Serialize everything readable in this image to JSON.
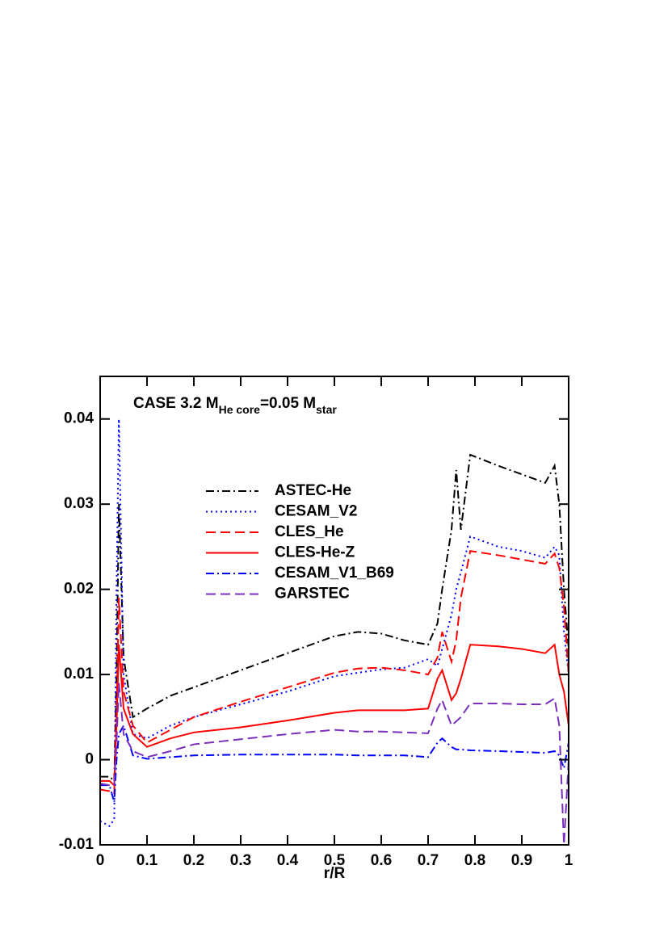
{
  "chart_data": {
    "type": "line",
    "title_parts": [
      {
        "text": "CASE 3.2 M"
      },
      {
        "text": "He core",
        "sub": true
      },
      {
        "text": "=0.05 M"
      },
      {
        "text": "star",
        "sub": true
      }
    ],
    "x_label": "r/R",
    "xlim": [
      0,
      1
    ],
    "ylim": [
      -0.01,
      0.045
    ],
    "xticks": [
      0,
      0.1,
      0.2,
      0.3,
      0.4,
      0.5,
      0.6,
      0.7,
      0.8,
      0.9,
      1
    ],
    "yticks": [
      -0.01,
      0,
      0.01,
      0.02,
      0.03,
      0.04
    ],
    "legend": "upper center",
    "x": [
      0,
      0.02,
      0.03,
      0.035,
      0.04,
      0.05,
      0.07,
      0.1,
      0.15,
      0.2,
      0.3,
      0.4,
      0.5,
      0.55,
      0.6,
      0.65,
      0.7,
      0.72,
      0.73,
      0.75,
      0.76,
      0.77,
      0.79,
      0.85,
      0.9,
      0.95,
      0.97,
      0.98,
      0.99,
      1.0
    ],
    "series": [
      {
        "name": "ASTEC-He",
        "color": "#000000",
        "dash": "dashdot",
        "values": [
          -0.002,
          -0.002,
          -0.0025,
          0.01,
          0.03,
          0.012,
          0.005,
          0.006,
          0.0075,
          0.0085,
          0.0105,
          0.0125,
          0.0145,
          0.015,
          0.0148,
          0.014,
          0.0135,
          0.016,
          0.02,
          0.027,
          0.034,
          0.027,
          0.0358,
          0.0345,
          0.0335,
          0.0325,
          0.0345,
          0.03,
          0.02,
          0.013
        ]
      },
      {
        "name": "CESAM_V2",
        "color": "#0000ff",
        "dash": "dotted",
        "values": [
          -0.0072,
          -0.0078,
          -0.007,
          0.02,
          0.04,
          0.01,
          0.003,
          0.0025,
          0.004,
          0.005,
          0.0065,
          0.008,
          0.0098,
          0.0102,
          0.0106,
          0.0108,
          0.0118,
          0.011,
          0.013,
          0.017,
          0.02,
          0.022,
          0.0262,
          0.025,
          0.0245,
          0.0237,
          0.025,
          0.024,
          0.015,
          0.01
        ]
      },
      {
        "name": "CLES_He",
        "color": "#ff0000",
        "dash": "dashed",
        "values": [
          -0.0035,
          -0.0037,
          -0.004,
          0.005,
          0.019,
          0.008,
          0.004,
          0.002,
          0.0035,
          0.005,
          0.0068,
          0.0085,
          0.0102,
          0.0107,
          0.0108,
          0.0105,
          0.01,
          0.012,
          0.015,
          0.0115,
          0.014,
          0.019,
          0.0245,
          0.024,
          0.0235,
          0.023,
          0.0242,
          0.0225,
          0.018,
          0.01
        ]
      },
      {
        "name": "CLES-He-Z",
        "color": "#ff0000",
        "dash": "solid",
        "values": [
          -0.0025,
          -0.0025,
          -0.003,
          0.004,
          0.0135,
          0.006,
          0.003,
          0.0015,
          0.0025,
          0.0032,
          0.0038,
          0.0046,
          0.0055,
          0.0058,
          0.0058,
          0.0058,
          0.006,
          0.0095,
          0.0105,
          0.007,
          0.0078,
          0.0095,
          0.0135,
          0.0133,
          0.013,
          0.0125,
          0.0135,
          0.01,
          0.008,
          0.004
        ]
      },
      {
        "name": "CESAM_V1_B69",
        "color": "#0000ff",
        "dash": "dashdot",
        "values": [
          -0.003,
          -0.003,
          -0.005,
          0.0,
          0.003,
          0.004,
          0.0005,
          0.0001,
          0.0003,
          0.0005,
          0.0006,
          0.0006,
          0.0006,
          0.0005,
          0.0005,
          0.0005,
          0.0003,
          0.002,
          0.0025,
          0.0015,
          0.0012,
          0.0012,
          0.0011,
          0.001,
          0.0009,
          0.0008,
          0.001,
          0.0005,
          -0.001,
          0.002
        ]
      },
      {
        "name": "GARSTEC",
        "color": "#7b2fbe",
        "dash": "dashed",
        "values": [
          -0.0028,
          -0.003,
          -0.003,
          0.002,
          0.009,
          0.003,
          0.001,
          0.0003,
          0.001,
          0.0018,
          0.0024,
          0.003,
          0.0035,
          0.0033,
          0.0033,
          0.0032,
          0.0031,
          0.006,
          0.007,
          0.004,
          0.0045,
          0.005,
          0.0066,
          0.0066,
          0.0065,
          0.0065,
          0.0072,
          0.004,
          -0.01,
          0.0
        ]
      }
    ]
  }
}
